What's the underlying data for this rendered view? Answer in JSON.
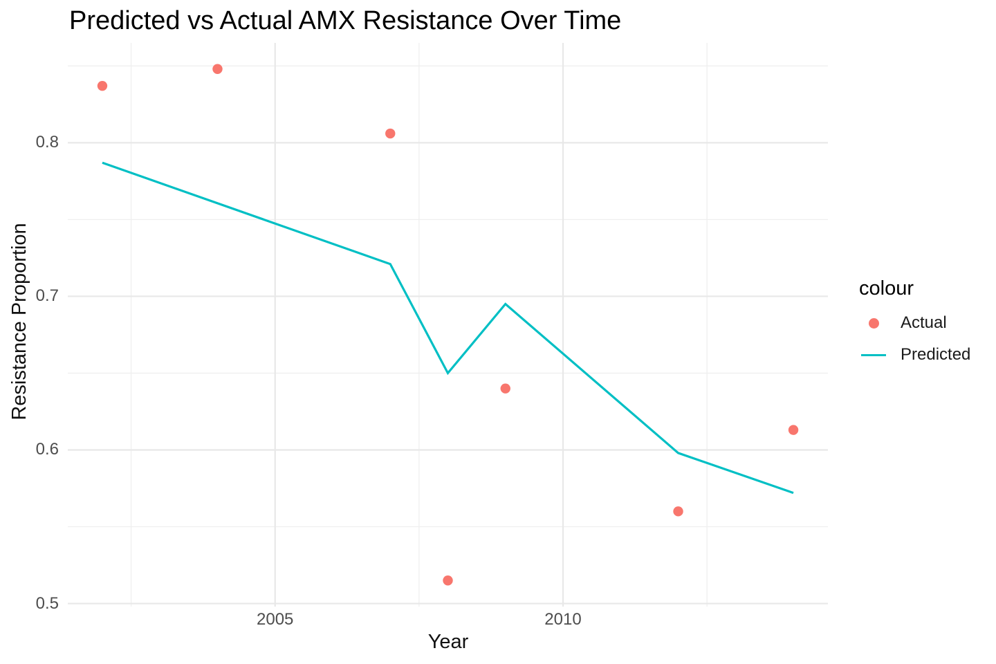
{
  "title": "Predicted vs Actual AMX Resistance Over Time",
  "axes": {
    "x": {
      "label": "Year",
      "range": [
        2001.4,
        2014.6
      ],
      "major_ticks": [
        {
          "label": "2005",
          "value": 2005
        },
        {
          "label": "2010",
          "value": 2010
        }
      ],
      "minor_gridlines": [
        2002.5,
        2007.5,
        2012.5
      ]
    },
    "y": {
      "label": "Resistance Proportion",
      "range": [
        0.498,
        0.865
      ],
      "major_ticks": [
        {
          "label": "0.5",
          "value": 0.5
        },
        {
          "label": "0.6",
          "value": 0.6
        },
        {
          "label": "0.7",
          "value": 0.7
        },
        {
          "label": "0.8",
          "value": 0.8
        }
      ],
      "minor_gridlines": [
        0.55,
        0.65,
        0.75,
        0.85
      ]
    }
  },
  "legend": {
    "title": "colour",
    "items": [
      {
        "label": "Actual",
        "marker": "point",
        "color": "#F8766D"
      },
      {
        "label": "Predicted",
        "marker": "line",
        "color": "#00BFC4"
      }
    ]
  },
  "colors": {
    "background": "#FFFFFF",
    "grid_major": "#E8E8E8",
    "grid_minor": "#EFEFEF",
    "tick_text": "#4D4D4D",
    "actual": "#F8766D",
    "predicted": "#00BFC4"
  },
  "chart_data": {
    "type": "scatter",
    "title": "Predicted vs Actual AMX Resistance Over Time",
    "xlabel": "Year",
    "ylabel": "Resistance Proportion",
    "xlim": [
      2001.4,
      2014.6
    ],
    "ylim": [
      0.498,
      0.865
    ],
    "grid": true,
    "legend_position": "right",
    "series": [
      {
        "name": "Actual",
        "type": "scatter",
        "color": "#F8766D",
        "x": [
          2002,
          2004,
          2007,
          2008,
          2009,
          2012,
          2014
        ],
        "y": [
          0.837,
          0.848,
          0.806,
          0.515,
          0.64,
          0.56,
          0.613
        ]
      },
      {
        "name": "Predicted",
        "type": "line",
        "color": "#00BFC4",
        "x": [
          2002,
          2007,
          2008,
          2009,
          2012,
          2014
        ],
        "y": [
          0.787,
          0.721,
          0.65,
          0.695,
          0.598,
          0.572
        ]
      }
    ]
  }
}
